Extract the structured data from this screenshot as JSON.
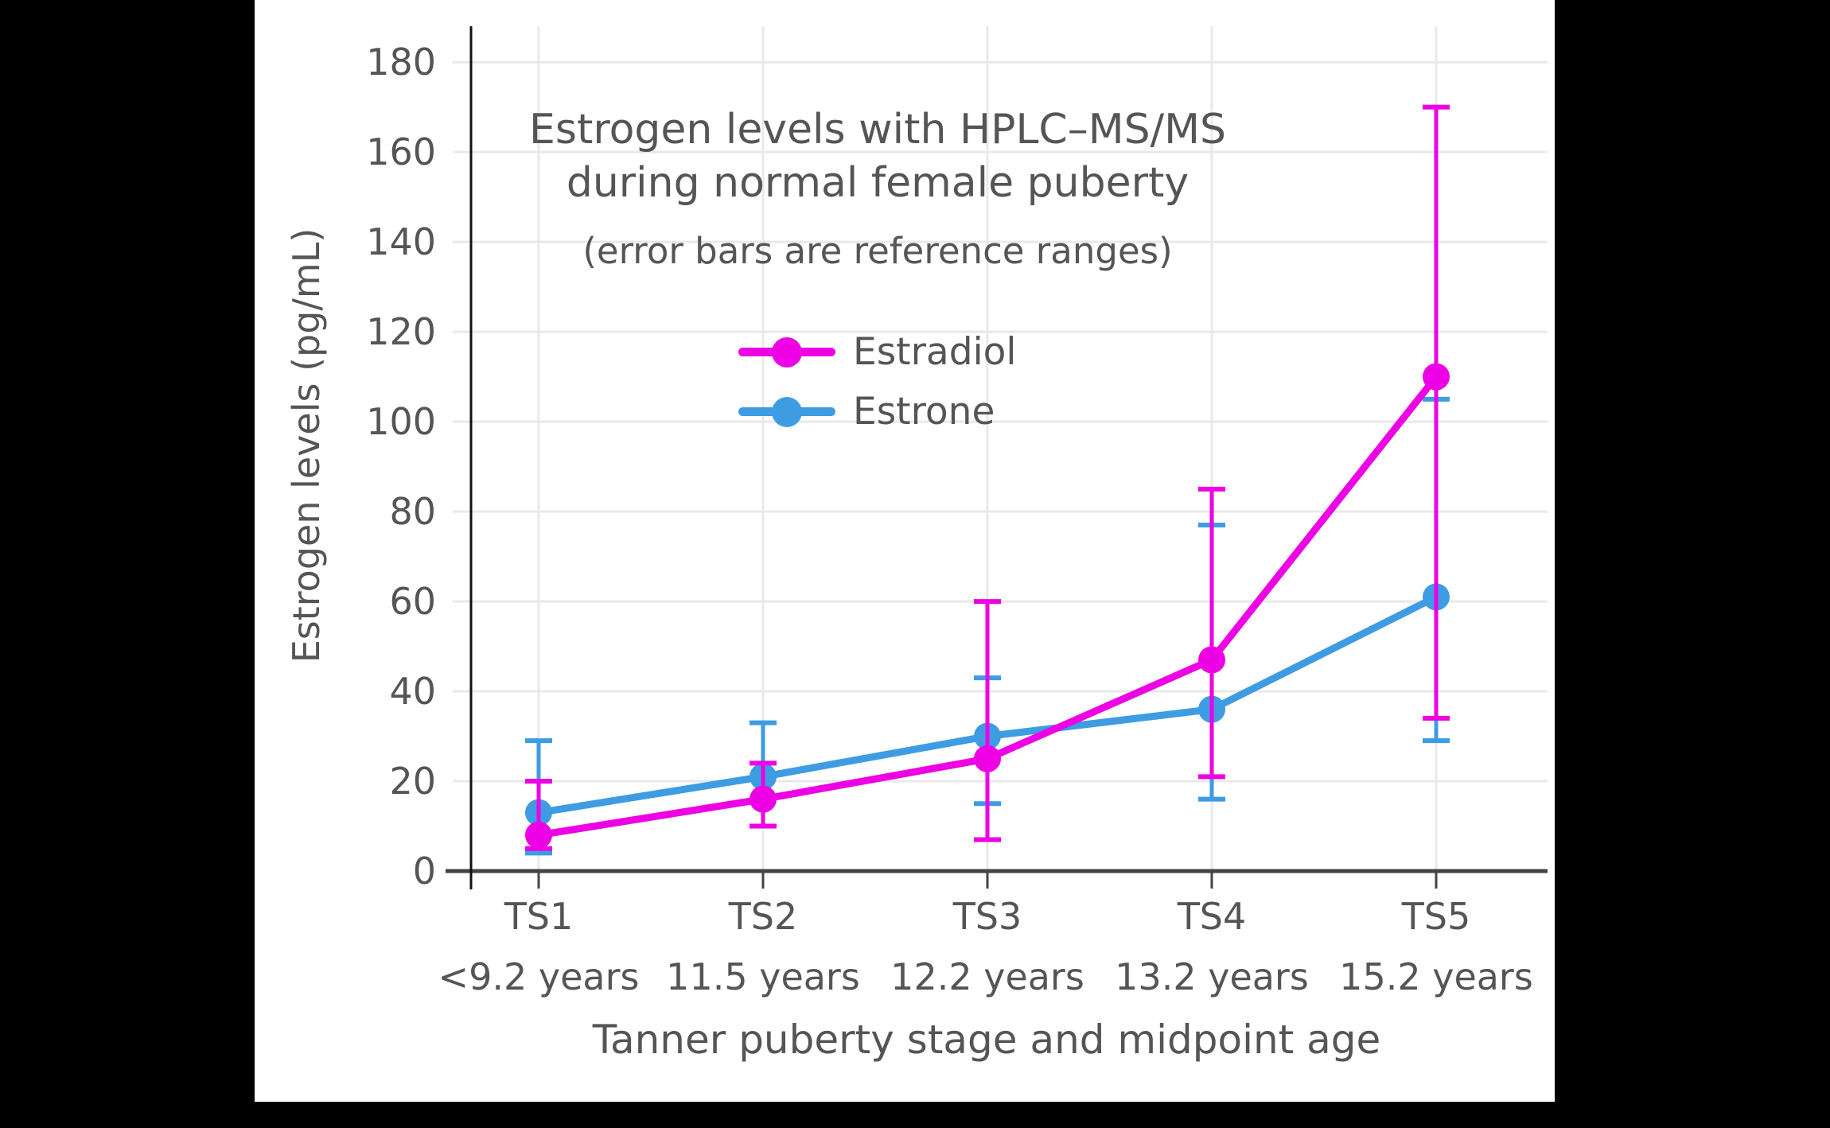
{
  "chart_data": {
    "type": "line",
    "title_line1": "Estrogen levels with HPLC–MS/MS",
    "title_line2": "during normal female puberty",
    "subtitle": "(error bars are reference ranges)",
    "ylabel": "Estrogen levels (pg/mL)",
    "xlabel": "Tanner puberty stage and midpoint age",
    "categories": [
      "TS1",
      "TS2",
      "TS3",
      "TS4",
      "TS5"
    ],
    "category_sublabels": [
      "<9.2 years",
      "11.5 years",
      "12.2 years",
      "13.2 years",
      "15.2 years"
    ],
    "yticks": [
      0,
      20,
      40,
      60,
      80,
      100,
      120,
      140,
      160,
      180
    ],
    "ylim": [
      0,
      188
    ],
    "grid": true,
    "legend_position": "upper-center-inside",
    "error_bars": "reference ranges",
    "series": [
      {
        "name": "Estradiol",
        "color": "#ee00e4",
        "values": [
          8,
          16,
          25,
          47,
          110
        ],
        "err_low": [
          5,
          10,
          7,
          21,
          34
        ],
        "err_high": [
          20,
          24,
          60,
          85,
          170
        ]
      },
      {
        "name": "Estrone",
        "color": "#3e9ce3",
        "values": [
          13,
          21,
          30,
          36,
          61
        ],
        "err_low": [
          4,
          10,
          15,
          16,
          29
        ],
        "err_high": [
          29,
          33,
          43,
          77,
          105
        ]
      }
    ],
    "colors": {
      "text": "#555555",
      "grid": "#e9e9e9",
      "y_axis_line": "#111111",
      "x_axis_line": "#444444",
      "panel_background": "#ffffff",
      "page_background": "#000000"
    }
  }
}
